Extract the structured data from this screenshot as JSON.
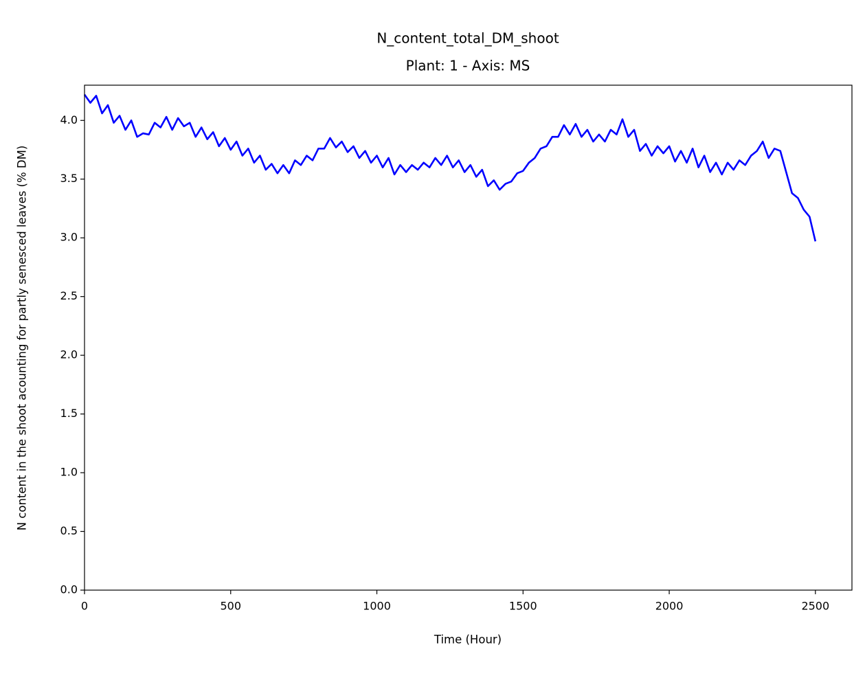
{
  "chart_data": {
    "type": "line",
    "title": "N_content_total_DM_shoot",
    "subtitle": "Plant: 1 - Axis: MS",
    "xlabel": "Time (Hour)",
    "ylabel": "N content in the shoot acounting for partly senesced leaves (% DM)",
    "x": [
      0,
      20,
      40,
      60,
      80,
      100,
      120,
      140,
      160,
      180,
      200,
      220,
      240,
      260,
      280,
      300,
      320,
      340,
      360,
      380,
      400,
      420,
      440,
      460,
      480,
      500,
      520,
      540,
      560,
      580,
      600,
      620,
      640,
      660,
      680,
      700,
      720,
      740,
      760,
      780,
      800,
      820,
      840,
      860,
      880,
      900,
      920,
      940,
      960,
      980,
      1000,
      1020,
      1040,
      1060,
      1080,
      1100,
      1120,
      1140,
      1160,
      1180,
      1200,
      1220,
      1240,
      1260,
      1280,
      1300,
      1320,
      1340,
      1360,
      1380,
      1400,
      1420,
      1440,
      1460,
      1480,
      1500,
      1520,
      1540,
      1560,
      1580,
      1600,
      1620,
      1640,
      1660,
      1680,
      1700,
      1720,
      1740,
      1760,
      1780,
      1800,
      1820,
      1840,
      1860,
      1880,
      1900,
      1920,
      1940,
      1960,
      1980,
      2000,
      2020,
      2040,
      2060,
      2080,
      2100,
      2120,
      2140,
      2160,
      2180,
      2200,
      2220,
      2240,
      2260,
      2280,
      2300,
      2320,
      2340,
      2360,
      2380,
      2400,
      2420,
      2440,
      2460,
      2480,
      2500
    ],
    "series": [
      {
        "name": "N_content_total_DM_shoot",
        "color": "#0000ff",
        "values": [
          4.22,
          4.15,
          4.21,
          4.06,
          4.13,
          3.98,
          4.04,
          3.92,
          4.0,
          3.86,
          3.89,
          3.88,
          3.98,
          3.94,
          4.03,
          3.92,
          4.02,
          3.95,
          3.98,
          3.86,
          3.94,
          3.84,
          3.9,
          3.78,
          3.85,
          3.75,
          3.82,
          3.7,
          3.76,
          3.64,
          3.7,
          3.58,
          3.63,
          3.55,
          3.62,
          3.55,
          3.66,
          3.62,
          3.7,
          3.66,
          3.76,
          3.76,
          3.85,
          3.77,
          3.82,
          3.73,
          3.78,
          3.68,
          3.74,
          3.64,
          3.7,
          3.6,
          3.68,
          3.54,
          3.62,
          3.56,
          3.62,
          3.58,
          3.64,
          3.6,
          3.68,
          3.62,
          3.7,
          3.6,
          3.66,
          3.56,
          3.62,
          3.52,
          3.58,
          3.44,
          3.49,
          3.41,
          3.46,
          3.48,
          3.55,
          3.57,
          3.64,
          3.68,
          3.76,
          3.78,
          3.86,
          3.86,
          3.96,
          3.88,
          3.97,
          3.86,
          3.92,
          3.82,
          3.88,
          3.82,
          3.92,
          3.88,
          4.01,
          3.86,
          3.92,
          3.74,
          3.8,
          3.7,
          3.78,
          3.72,
          3.78,
          3.65,
          3.74,
          3.64,
          3.76,
          3.6,
          3.7,
          3.56,
          3.64,
          3.54,
          3.64,
          3.58,
          3.66,
          3.62,
          3.7,
          3.74,
          3.82,
          3.68,
          3.76,
          3.74,
          3.56,
          3.38,
          3.34,
          3.24,
          3.18,
          2.97
        ]
      }
    ],
    "xlim": [
      0,
      2625
    ],
    "ylim": [
      0,
      4.3
    ],
    "xticks": [
      0,
      500,
      1000,
      1500,
      2000,
      2500
    ],
    "yticks": [
      {
        "value": 0,
        "label": "0.0"
      },
      0.5,
      {
        "value": 1,
        "label": "1.0"
      },
      1.5,
      {
        "value": 2,
        "label": "2.0"
      },
      2.5,
      {
        "value": 3,
        "label": "3.0"
      },
      3.5,
      {
        "value": 4,
        "label": "4.0"
      }
    ],
    "grid": false
  }
}
